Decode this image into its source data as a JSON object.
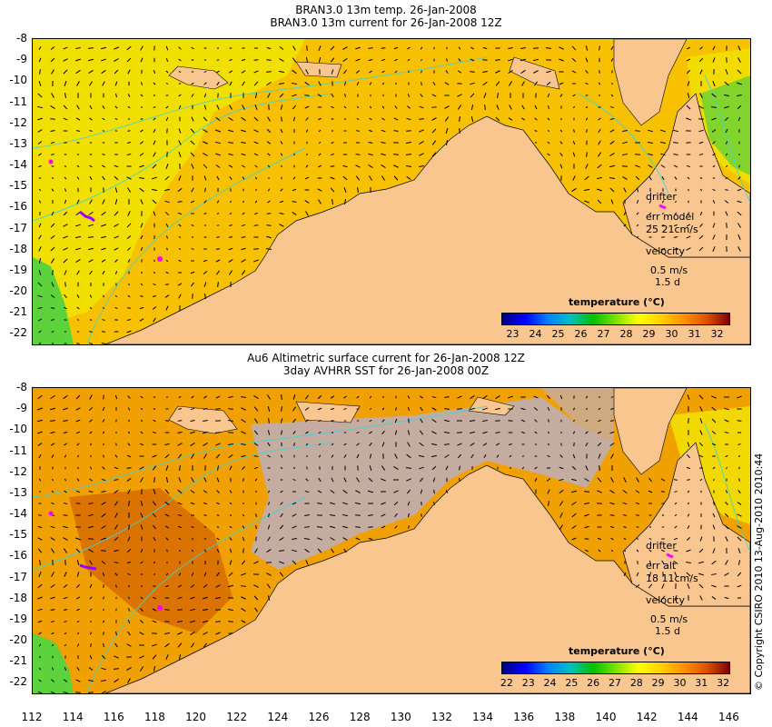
{
  "top_panel": {
    "title_line1": "BRAN3.0 13m temp. 26-Jan-2008",
    "title_line2": "BRAN3.0 13m current for 26-Jan-2008 12Z",
    "legend_title": "temperature (°C)",
    "colorbar_ticks": [
      "23",
      "24",
      "25",
      "26",
      "27",
      "28",
      "29",
      "30",
      "31",
      "32"
    ],
    "drifter_label": "drifter",
    "err_label": "err model",
    "err_values": "25 21cm/s",
    "velocity_label": "velocity",
    "velocity_scale": "0.5 m/s",
    "velocity_time": "1.5 d"
  },
  "bottom_panel": {
    "title_line1": "Au6 Altimetric surface current for 26-Jan-2008 12Z",
    "title_line2": "3day AVHRR SST for 26-Jan-2008 00Z",
    "legend_title": "temperature (°C)",
    "colorbar_ticks": [
      "22",
      "23",
      "24",
      "25",
      "26",
      "27",
      "28",
      "29",
      "30",
      "31",
      "32"
    ],
    "drifter_label": "drifter",
    "err_label": "err alt",
    "err_values": "18 11cm/s",
    "velocity_label": "velocity",
    "velocity_scale": "0.5 m/s",
    "velocity_time": "1.5 d"
  },
  "y_ticks": [
    "-8",
    "-9",
    "-10",
    "-11",
    "-12",
    "-13",
    "-14",
    "-15",
    "-16",
    "-17",
    "-18",
    "-19",
    "-20",
    "-21",
    "-22"
  ],
  "x_ticks": [
    "112",
    "114",
    "116",
    "118",
    "120",
    "122",
    "124",
    "126",
    "128",
    "130",
    "132",
    "134",
    "136",
    "138",
    "140",
    "142",
    "144",
    "146"
  ],
  "copyright": "© Copyright CSIRO 2010   13-Aug-2010 2010:44",
  "colors": {
    "land": "#f9c690",
    "warm_sea": "#f6b400",
    "cool_sea": "#f2e600",
    "contour": "#3cd6d6",
    "drifter": "#ff00ff",
    "cloud": "#c4aca0"
  }
}
